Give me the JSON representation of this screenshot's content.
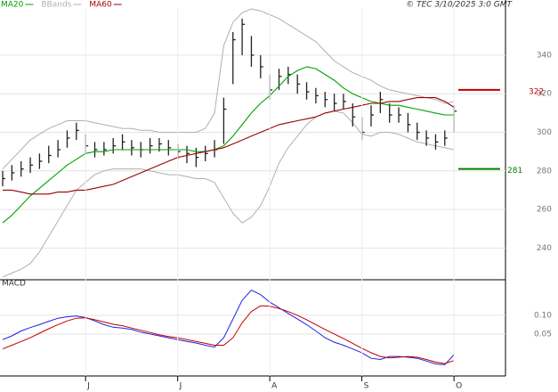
{
  "header": {
    "legend": [
      {
        "name": "MA20",
        "color": "#00a000"
      },
      {
        "name": "BBands",
        "color": "#b0b0b0"
      },
      {
        "name": "MA60",
        "color": "#990000"
      }
    ],
    "copyright": "© TEC 3/10/2025 3:0 GMT"
  },
  "chart_data": [
    {
      "type": "ohlc",
      "categories": [
        null,
        null,
        null,
        null,
        null,
        null,
        null,
        null,
        null,
        "J",
        null,
        null,
        null,
        null,
        null,
        null,
        null,
        null,
        null,
        "J",
        null,
        null,
        null,
        null,
        null,
        null,
        null,
        null,
        null,
        "A",
        null,
        null,
        null,
        null,
        null,
        null,
        null,
        null,
        null,
        "S",
        null,
        null,
        null,
        null,
        null,
        null,
        null,
        null,
        null,
        "O"
      ],
      "high": [
        280,
        283,
        285,
        287,
        289,
        293,
        296,
        301,
        305,
        299,
        295,
        295,
        297,
        299,
        296,
        295,
        297,
        297,
        296,
        294,
        293,
        292,
        293,
        296,
        318,
        352,
        359,
        350,
        340,
        330,
        333,
        334,
        330,
        326,
        323,
        321,
        320,
        320,
        315,
        308,
        314,
        321,
        315,
        313,
        310,
        305,
        301,
        299,
        301,
        314
      ],
      "low": [
        272,
        275,
        277,
        279,
        281,
        284,
        287,
        292,
        296,
        289,
        287,
        288,
        289,
        291,
        288,
        287,
        289,
        290,
        288,
        286,
        284,
        282,
        285,
        287,
        294,
        325,
        340,
        334,
        328,
        317,
        322,
        325,
        320,
        317,
        315,
        313,
        311,
        312,
        303,
        296,
        303,
        310,
        305,
        305,
        300,
        296,
        293,
        291,
        293,
        300
      ],
      "close": [
        276,
        279,
        281,
        283,
        285,
        288,
        291,
        297,
        301,
        293,
        291,
        291,
        293,
        295,
        292,
        291,
        293,
        294,
        292,
        290,
        289,
        287,
        289,
        291,
        312,
        348,
        356,
        340,
        334,
        322,
        329,
        330,
        325,
        321,
        319,
        317,
        315,
        316,
        308,
        300,
        309,
        317,
        309,
        309,
        304,
        300,
        297,
        295,
        297,
        311
      ],
      "bar_color": "#222222",
      "series": [
        {
          "name": "MA20",
          "color": "#00a000",
          "values": [
            253,
            257,
            262,
            267,
            271,
            275,
            279,
            283,
            286,
            289,
            290,
            290,
            291,
            291,
            291,
            291,
            291,
            291,
            291,
            291,
            291,
            290,
            290,
            291,
            293,
            298,
            304,
            310,
            315,
            319,
            324,
            329,
            332,
            334,
            333,
            330,
            327,
            323,
            320,
            318,
            316,
            315,
            314,
            314,
            313,
            312,
            311,
            310,
            309,
            309
          ]
        },
        {
          "name": "BBands",
          "color": "#b0b0b0",
          "upper": [
            281,
            286,
            291,
            296,
            299,
            302,
            304,
            306,
            306,
            306,
            305,
            304,
            303,
            302,
            302,
            301,
            301,
            300,
            300,
            300,
            300,
            300,
            302,
            310,
            345,
            357,
            362,
            364,
            363,
            361,
            359,
            356,
            353,
            350,
            347,
            342,
            337,
            334,
            331,
            329,
            327,
            324,
            322,
            321,
            320,
            319,
            318,
            317,
            315,
            316
          ],
          "lower": [
            225,
            227,
            229,
            232,
            238,
            246,
            254,
            262,
            270,
            274,
            278,
            280,
            281,
            281,
            281,
            281,
            280,
            279,
            278,
            278,
            277,
            276,
            276,
            274,
            266,
            258,
            253,
            256,
            262,
            272,
            284,
            292,
            298,
            304,
            308,
            310,
            311,
            310,
            305,
            299,
            298,
            300,
            300,
            299,
            297,
            295,
            294,
            293,
            292,
            291
          ]
        },
        {
          "name": "MA60",
          "color": "#990000",
          "values": [
            270,
            270,
            269,
            268,
            268,
            268,
            269,
            269,
            270,
            270,
            271,
            272,
            273,
            275,
            277,
            279,
            281,
            283,
            285,
            287,
            288,
            289,
            290,
            291,
            292,
            294,
            296,
            298,
            300,
            302,
            304,
            305,
            306,
            307,
            308,
            310,
            311,
            312,
            313,
            314,
            315,
            315,
            316,
            316,
            317,
            318,
            318,
            318,
            316,
            313
          ]
        }
      ],
      "levels": [
        {
          "value": 322,
          "color": "#c00000"
        },
        {
          "value": 281,
          "color": "#008000"
        }
      ],
      "ylim": [
        224,
        364
      ],
      "yticks": [
        240,
        260,
        280,
        300,
        320,
        340
      ],
      "grid": true
    },
    {
      "type": "line",
      "title": "MACD",
      "series": [
        {
          "color": "#2020e0",
          "values": [
            0.035,
            0.045,
            0.058,
            0.067,
            0.075,
            0.084,
            0.092,
            0.096,
            0.098,
            0.094,
            0.085,
            0.075,
            0.068,
            0.066,
            0.062,
            0.055,
            0.05,
            0.045,
            0.04,
            0.035,
            0.03,
            0.026,
            0.02,
            0.015,
            0.04,
            0.09,
            0.14,
            0.167,
            0.155,
            0.135,
            0.12,
            0.105,
            0.09,
            0.075,
            0.058,
            0.04,
            0.028,
            0.02,
            0.01,
            0.0,
            -0.015,
            -0.018,
            -0.01,
            -0.01,
            -0.012,
            -0.015,
            -0.022,
            -0.03,
            -0.032,
            -0.005
          ]
        },
        {
          "color": "#c00000",
          "values": [
            0.01,
            0.02,
            0.03,
            0.04,
            0.052,
            0.064,
            0.075,
            0.085,
            0.092,
            0.093,
            0.088,
            0.082,
            0.076,
            0.072,
            0.066,
            0.06,
            0.054,
            0.048,
            0.043,
            0.04,
            0.035,
            0.03,
            0.025,
            0.02,
            0.02,
            0.04,
            0.08,
            0.11,
            0.125,
            0.124,
            0.118,
            0.11,
            0.1,
            0.088,
            0.075,
            0.062,
            0.05,
            0.038,
            0.025,
            0.012,
            0.0,
            -0.01,
            -0.014,
            -0.012,
            -0.01,
            -0.012,
            -0.018,
            -0.025,
            -0.029,
            -0.021
          ]
        }
      ],
      "ylim": [
        -0.062,
        0.19
      ],
      "yticks": [
        {
          "value": 0.1,
          "label": "0.10"
        },
        {
          "value": 0.05,
          "label": "0.05"
        }
      ],
      "grid": true
    }
  ]
}
